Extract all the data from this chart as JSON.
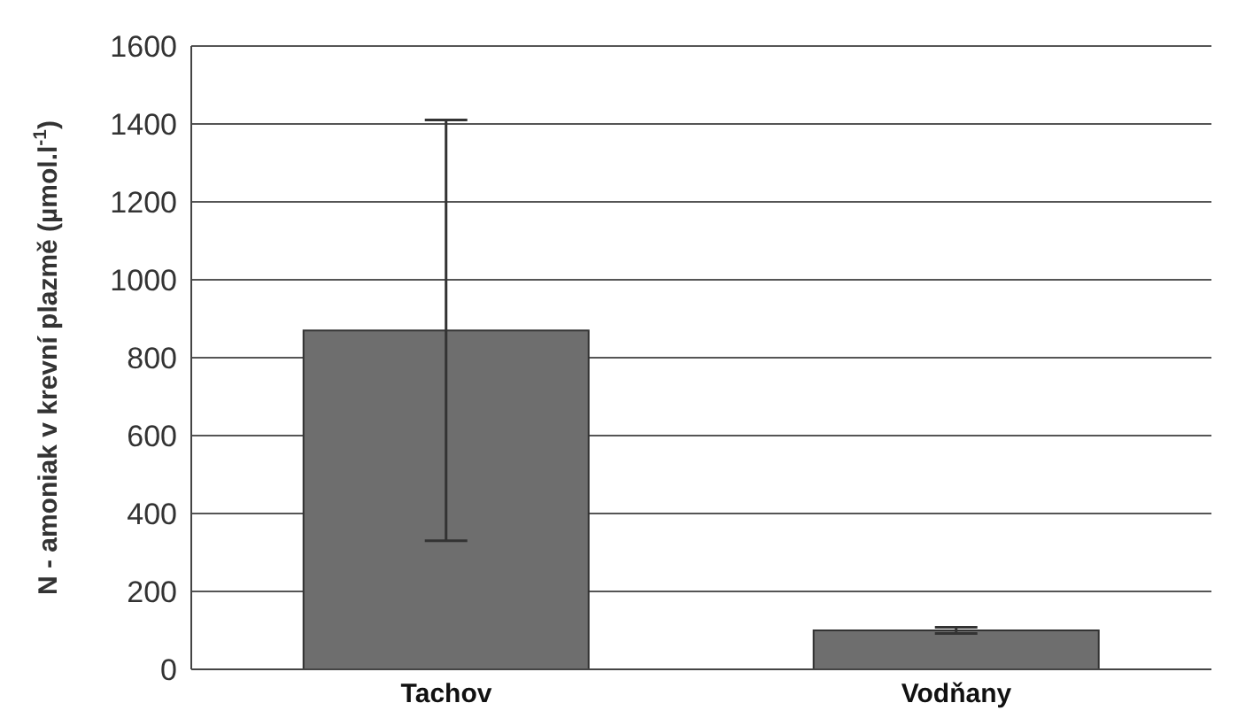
{
  "chart_data": {
    "type": "bar",
    "categories": [
      "Tachov",
      "Vodňany"
    ],
    "values": [
      870,
      100
    ],
    "errors": [
      540,
      8
    ],
    "color": "#6e6e6e",
    "ylabel": "N - amoniak v krevní plazmě (µmol.l$^{-1}$)",
    "ylim": [
      0,
      1600
    ],
    "yticks": [
      0,
      200,
      400,
      600,
      800,
      1000,
      1200,
      1400,
      1600
    ],
    "grid": "y"
  }
}
